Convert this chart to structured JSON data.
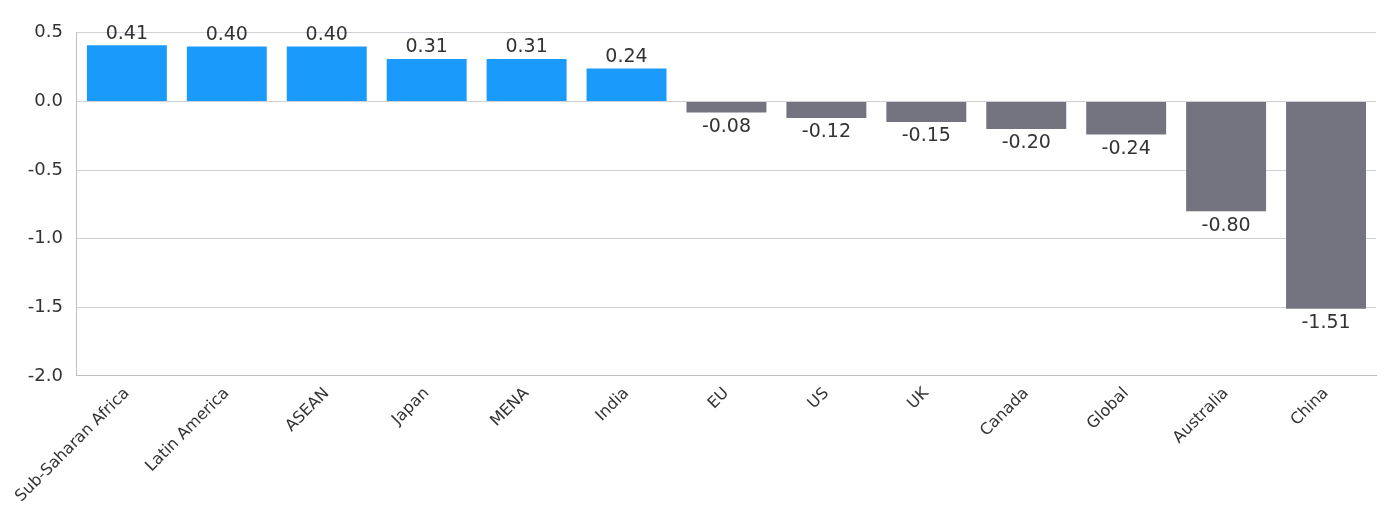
{
  "chart_data": {
    "type": "bar",
    "categories": [
      "Sub-Saharan Africa",
      "Latin America",
      "ASEAN",
      "Japan",
      "MENA",
      "India",
      "EU",
      "US",
      "UK",
      "Canada",
      "Global",
      "Australia",
      "China"
    ],
    "values": [
      0.41,
      0.4,
      0.4,
      0.31,
      0.31,
      0.24,
      -0.08,
      -0.12,
      -0.15,
      -0.2,
      -0.24,
      -0.8,
      -1.51
    ],
    "colors": [
      "#1a9afa",
      "#1a9afa",
      "#1a9afa",
      "#1a9afa",
      "#1a9afa",
      "#1a9afa",
      "#747480",
      "#747480",
      "#747480",
      "#747480",
      "#747480",
      "#747480",
      "#747480"
    ],
    "ylim": [
      -2.0,
      0.5
    ],
    "yticks": [
      {
        "value": -2.0,
        "label": "-2.0"
      },
      {
        "value": -1.5,
        "label": "-1.5"
      },
      {
        "value": -1.0,
        "label": "-1.0"
      },
      {
        "value": -0.5,
        "label": "-0.5"
      },
      {
        "value": 0.0,
        "label": "0.0"
      },
      {
        "value": 0.5,
        "label": "0.5"
      }
    ],
    "grid": "y",
    "value_labels": [
      "0.41",
      "0.40",
      "0.40",
      "0.31",
      "0.31",
      "0.24",
      "-0.08",
      "-0.12",
      "-0.15",
      "-0.20",
      "-0.24",
      "-0.80",
      "-1.51"
    ],
    "legend": false
  }
}
